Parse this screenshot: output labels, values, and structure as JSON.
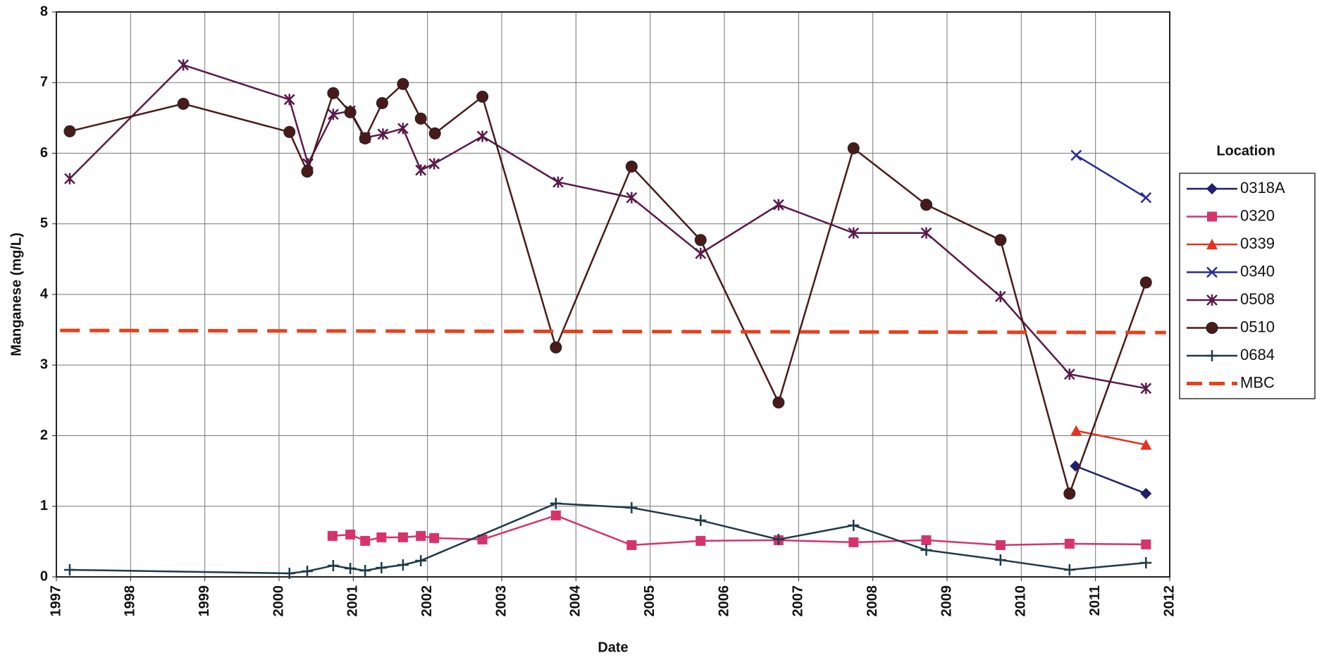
{
  "chart_data": {
    "type": "line",
    "x_label": "Date",
    "y_label": "Manganese (mg/L)",
    "xlim": [
      1997,
      2012
    ],
    "xticks": [
      1997,
      1998,
      1999,
      2000,
      2001,
      2002,
      2003,
      2004,
      2005,
      2006,
      2007,
      2008,
      2009,
      2010,
      2011,
      2012
    ],
    "ylim": [
      0,
      8
    ],
    "yticks": [
      0,
      1,
      2,
      3,
      4,
      5,
      6,
      7,
      8
    ],
    "grid": true,
    "legend_title": "Location",
    "legend_position": "right",
    "series": [
      {
        "name": "0318A",
        "color": "#1f1f6e",
        "marker": "diamond",
        "line_style": "solid",
        "x": [
          2010.73,
          2011.68
        ],
        "values": [
          1.57,
          1.18
        ]
      },
      {
        "name": "0320",
        "color": "#d6336c",
        "marker": "square",
        "line_style": "solid",
        "x": [
          2000.72,
          2000.96,
          2001.16,
          2001.38,
          2001.67,
          2001.91,
          2002.09,
          2002.74,
          2003.73,
          2004.75,
          2005.68,
          2006.73,
          2007.74,
          2008.72,
          2009.72,
          2010.65,
          2011.68
        ],
        "values": [
          0.58,
          0.6,
          0.51,
          0.56,
          0.56,
          0.58,
          0.55,
          0.53,
          0.87,
          0.45,
          0.51,
          0.52,
          0.49,
          0.52,
          0.45,
          0.47,
          0.46
        ]
      },
      {
        "name": "0339",
        "color": "#e8321e",
        "marker": "triangle",
        "line_style": "solid",
        "x": [
          2010.74,
          2011.68
        ],
        "values": [
          2.07,
          1.87
        ]
      },
      {
        "name": "0340",
        "color": "#2a2a9a",
        "marker": "x",
        "line_style": "solid",
        "x": [
          2010.74,
          2011.68
        ],
        "values": [
          5.97,
          5.37
        ]
      },
      {
        "name": "0508",
        "color": "#5a1a4a",
        "marker": "star",
        "line_style": "solid",
        "x": [
          1997.18,
          1998.71,
          2000.14,
          2000.39,
          2000.73,
          2000.96,
          2001.16,
          2001.4,
          2001.67,
          2001.91,
          2002.09,
          2002.74,
          2003.76,
          2004.75,
          2005.68,
          2006.73,
          2007.74,
          2008.72,
          2009.72,
          2010.65,
          2011.68
        ],
        "values": [
          5.64,
          7.25,
          6.76,
          5.85,
          6.55,
          6.6,
          6.22,
          6.27,
          6.35,
          5.76,
          5.85,
          6.24,
          5.59,
          5.37,
          4.58,
          5.27,
          4.87,
          4.87,
          3.97,
          2.87,
          2.67
        ]
      },
      {
        "name": "0510",
        "color": "#4a1a1a",
        "marker": "circle",
        "line_style": "solid",
        "x": [
          1997.18,
          1998.71,
          2000.14,
          2000.38,
          2000.73,
          2000.96,
          2001.16,
          2001.39,
          2001.67,
          2001.91,
          2002.1,
          2002.74,
          2003.73,
          2004.75,
          2005.68,
          2006.73,
          2007.74,
          2008.72,
          2009.72,
          2010.65,
          2011.68
        ],
        "values": [
          6.31,
          6.7,
          6.3,
          5.74,
          6.85,
          6.58,
          6.21,
          6.71,
          6.98,
          6.49,
          6.28,
          6.8,
          3.25,
          5.81,
          4.77,
          2.47,
          6.07,
          5.27,
          4.77,
          1.18,
          4.17
        ]
      },
      {
        "name": "0684",
        "color": "#1e3a4a",
        "marker": "plus",
        "line_style": "solid",
        "x": [
          1997.18,
          2000.14,
          2000.38,
          2000.73,
          2000.96,
          2001.16,
          2001.38,
          2001.67,
          2001.91,
          2003.73,
          2004.75,
          2005.68,
          2006.73,
          2007.74,
          2008.72,
          2009.72,
          2010.65,
          2011.68
        ],
        "values": [
          0.1,
          0.05,
          0.08,
          0.16,
          0.12,
          0.09,
          0.13,
          0.17,
          0.23,
          1.04,
          0.98,
          0.8,
          0.53,
          0.73,
          0.38,
          0.24,
          0.1,
          0.2
        ]
      },
      {
        "name": "MBC",
        "color": "#e8401c",
        "marker": "none",
        "line_style": "dashed",
        "x": [
          1997.05,
          2011.95
        ],
        "values": [
          3.49,
          3.46
        ]
      }
    ]
  }
}
